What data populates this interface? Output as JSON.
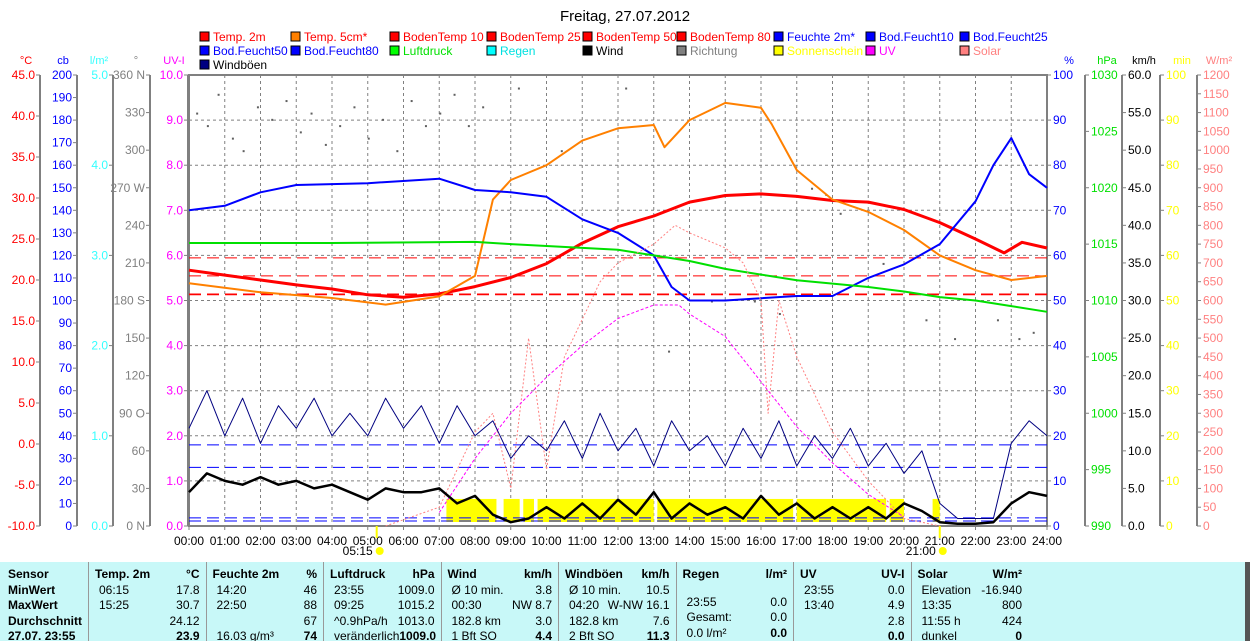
{
  "title": "Freitag, 27.07.2012",
  "legend": [
    {
      "label": "Temp. 2m",
      "color": "#ff0000",
      "text": "#ff0000"
    },
    {
      "label": "Temp. 5cm*",
      "color": "#ff8000",
      "text": "#ff0000"
    },
    {
      "label": "BodenTemp 10",
      "color": "#ff0000",
      "text": "#ff0000"
    },
    {
      "label": "BodenTemp 25",
      "color": "#ff0000",
      "text": "#ff0000"
    },
    {
      "label": "BodenTemp 50",
      "color": "#ff0000",
      "text": "#ff0000"
    },
    {
      "label": "BodenTemp 80",
      "color": "#ff0000",
      "text": "#ff0000"
    },
    {
      "label": "Feuchte 2m*",
      "color": "#0000ff",
      "text": "#0000ff"
    },
    {
      "label": "Bod.Feucht10",
      "color": "#0000ff",
      "text": "#0000ff"
    },
    {
      "label": "Bod.Feucht25",
      "color": "#0000ff",
      "text": "#0000ff"
    },
    {
      "label": "Bod.Feucht50",
      "color": "#0000ff",
      "text": "#0000ff"
    },
    {
      "label": "Bod.Feucht80",
      "color": "#0000ff",
      "text": "#0000ff"
    },
    {
      "label": "Luftdruck",
      "color": "#00ff00",
      "text": "#00e000"
    },
    {
      "label": "Regen",
      "color": "#00ffff",
      "text": "#00e0e0"
    },
    {
      "label": "Wind",
      "color": "#000000",
      "text": "#000000"
    },
    {
      "label": "Richtung",
      "color": "#808080",
      "text": "#808080"
    },
    {
      "label": "Sonnenschein",
      "color": "#ffff00",
      "text": "#ffff00"
    },
    {
      "label": "UV",
      "color": "#ff00ff",
      "text": "#ff00ff"
    },
    {
      "label": "Solar",
      "color": "#ff8080",
      "text": "#ff8080"
    },
    {
      "label": "Windböen",
      "color": "#000080",
      "text": "#000000"
    }
  ],
  "chart_data": {
    "type": "line",
    "title": "Freitag, 27.07.2012",
    "x_labels": [
      "00:00",
      "01:00",
      "02:00",
      "03:00",
      "04:00",
      "05:00",
      "06:00",
      "07:00",
      "08:00",
      "09:00",
      "10:00",
      "11:00",
      "12:00",
      "13:00",
      "14:00",
      "15:00",
      "16:00",
      "17:00",
      "18:00",
      "19:00",
      "20:00",
      "21:00",
      "22:00",
      "23:00",
      "24:00"
    ],
    "xlim": [
      0,
      24
    ],
    "sunrise": {
      "label": "05:15",
      "hour": 5.25
    },
    "sunset": {
      "label": "21:00",
      "hour": 21.0
    },
    "grid": true,
    "axes": {
      "temp": {
        "unit": "°C",
        "color": "#ff0000",
        "min": -10,
        "max": 45,
        "step": 5,
        "dec": 1,
        "side": "left"
      },
      "cb": {
        "unit": "cb",
        "color": "#0000ff",
        "min": 0,
        "max": 200,
        "step": 10,
        "dec": 0,
        "side": "left"
      },
      "rain": {
        "unit": "l/m²",
        "color": "#33ffff",
        "min": 0,
        "max": 5,
        "step": 1,
        "dec": 1,
        "side": "left"
      },
      "dir": {
        "unit": "°",
        "color": "#808080",
        "min": 0,
        "max": 360,
        "step": 30,
        "side": "left",
        "labels": [
          "0 N",
          "30",
          "60",
          "90 O",
          "120",
          "150",
          "180 S",
          "210",
          "240",
          "270 W",
          "300",
          "330",
          "360 N"
        ]
      },
      "uv": {
        "unit": "UV-I",
        "color": "#ff00ff",
        "min": 0,
        "max": 10,
        "step": 1,
        "dec": 1,
        "side": "left"
      },
      "hum": {
        "unit": "%",
        "color": "#0000ff",
        "min": 0,
        "max": 100,
        "step": 10,
        "dec": 0,
        "side": "right"
      },
      "press": {
        "unit": "hPa",
        "color": "#00e000",
        "min": 990,
        "max": 1030,
        "step": 5,
        "dec": 0,
        "side": "right"
      },
      "wind": {
        "unit": "km/h",
        "color": "#000000",
        "min": 0,
        "max": 60,
        "step": 5,
        "dec": 1,
        "side": "right"
      },
      "sun": {
        "unit": "min",
        "color": "#ffff00",
        "min": 0,
        "max": 100,
        "step": 10,
        "dec": 0,
        "side": "right"
      },
      "solar": {
        "unit": "W/m²",
        "color": "#ff8080",
        "min": 0,
        "max": 1200,
        "step": 50,
        "dec": 0,
        "side": "right"
      }
    },
    "series": [
      {
        "name": "Temp. 2m",
        "axis": "temp",
        "color": "#ff0000",
        "width": 3,
        "x": [
          0,
          1,
          2,
          3,
          4,
          5,
          6,
          7,
          8,
          9,
          10,
          11,
          12,
          13,
          14,
          15,
          16,
          17,
          18,
          19,
          20,
          21,
          22,
          22.8,
          23.3,
          24
        ],
        "y": [
          21.2,
          20.6,
          20.0,
          19.4,
          18.9,
          18.2,
          17.9,
          18.3,
          19.2,
          20.3,
          22.0,
          24.5,
          26.5,
          27.8,
          29.5,
          30.3,
          30.5,
          30.2,
          29.7,
          29.5,
          28.6,
          27.0,
          25.0,
          23.3,
          24.6,
          23.9
        ]
      },
      {
        "name": "Temp. 5cm*",
        "axis": "temp",
        "color": "#ff8000",
        "width": 2,
        "x": [
          0,
          2,
          4,
          5.5,
          7,
          8,
          8.5,
          9,
          10,
          11,
          12,
          13,
          13.3,
          14,
          15,
          16,
          16.3,
          17,
          18,
          19,
          20,
          21,
          22,
          23,
          24
        ],
        "y": [
          19.6,
          18.5,
          17.8,
          17.0,
          18.0,
          20.5,
          29.8,
          32.2,
          34.0,
          37.0,
          38.5,
          38.9,
          36.2,
          39.5,
          41.6,
          41.0,
          39.0,
          33.4,
          29.8,
          28.3,
          26.1,
          23.0,
          21.2,
          20.0,
          20.5
        ]
      },
      {
        "name": "Feuchte 2m*",
        "axis": "hum",
        "color": "#0000ff",
        "width": 2,
        "x": [
          0,
          1,
          2,
          3,
          5,
          7,
          8,
          9,
          10,
          11,
          12,
          13,
          13.5,
          14,
          15,
          16,
          17,
          18,
          19,
          20,
          21,
          22,
          22.5,
          23,
          23.5,
          24
        ],
        "y": [
          70,
          71,
          74,
          75.6,
          76,
          77,
          74.5,
          74,
          73,
          68,
          65,
          60,
          53,
          50,
          50,
          50.5,
          51,
          51,
          55,
          58,
          62.5,
          72,
          80,
          86,
          78,
          75
        ]
      },
      {
        "name": "Luftdruck",
        "axis": "press",
        "color": "#00e000",
        "width": 2,
        "x": [
          0,
          4,
          8,
          9,
          12,
          13,
          14,
          15,
          16,
          17,
          19,
          20,
          21,
          22,
          23,
          24
        ],
        "y": [
          1015.1,
          1015.1,
          1015.2,
          1015.0,
          1014.5,
          1014.0,
          1013.5,
          1012.8,
          1012.3,
          1011.8,
          1011.2,
          1010.8,
          1010.3,
          1010.0,
          1009.5,
          1009.0
        ]
      },
      {
        "name": "Solar",
        "axis": "solar",
        "color": "#ff8080",
        "width": 1,
        "dash": "2,2",
        "x": [
          5.5,
          7,
          8,
          8.5,
          9,
          9.5,
          10,
          10.5,
          11,
          11.5,
          12,
          13,
          13.6,
          14,
          15,
          15.5,
          16,
          16.2,
          16.5,
          17,
          18,
          19,
          20,
          21
        ],
        "y": [
          0,
          50,
          250,
          300,
          100,
          500,
          150,
          450,
          550,
          650,
          700,
          750,
          800,
          780,
          740,
          700,
          600,
          300,
          600,
          450,
          250,
          120,
          20,
          0
        ]
      },
      {
        "name": "UV",
        "axis": "uv",
        "color": "#ff00ff",
        "width": 1,
        "dash": "3,2",
        "x": [
          7,
          8,
          9,
          10,
          11,
          12,
          13,
          13.7,
          14,
          15,
          16,
          17,
          18,
          19,
          20
        ],
        "y": [
          0.3,
          1.5,
          2.5,
          3.3,
          4.0,
          4.6,
          4.9,
          4.9,
          4.7,
          4.2,
          3.2,
          2.2,
          1.4,
          0.7,
          0.2
        ]
      },
      {
        "name": "Windböen",
        "axis": "wind",
        "color": "#000080",
        "width": 1,
        "step": 0.5,
        "y": [
          13,
          18,
          12,
          17,
          11,
          16,
          13,
          17,
          12,
          15,
          12,
          17,
          13,
          16,
          11,
          16,
          12,
          14,
          9,
          12,
          10,
          14,
          9,
          15,
          10,
          13,
          8,
          14,
          10,
          12,
          8,
          13,
          9,
          14,
          8,
          12,
          9,
          13,
          8,
          11,
          7,
          10,
          3,
          1,
          1,
          1,
          11,
          14,
          12
        ]
      },
      {
        "name": "Wind",
        "axis": "wind",
        "color": "#000000",
        "width": 2.5,
        "step": 0.5,
        "y": [
          4.5,
          7,
          6,
          5.5,
          6.5,
          5.5,
          6,
          5,
          5.5,
          4.5,
          3.5,
          5,
          4.5,
          4.5,
          5,
          3,
          4,
          1.5,
          0.5,
          1,
          2.5,
          1,
          3,
          1,
          3.5,
          1.5,
          4.5,
          1,
          3,
          1.5,
          2.5,
          1,
          4,
          1.5,
          3,
          1,
          2.5,
          1,
          2.5,
          1,
          3,
          2,
          0.5,
          0.3,
          0.3,
          0.5,
          3,
          4.5,
          4
        ]
      }
    ],
    "levels": [
      {
        "name": "BodenTemp 10",
        "axis": "temp",
        "color": "#ff0000",
        "value": 22.7
      },
      {
        "name": "BodenTemp 25",
        "axis": "temp",
        "color": "#ff0000",
        "value": 20.5
      },
      {
        "name": "BodenTemp 50",
        "axis": "temp",
        "color": "#ff0000",
        "value": 18.3
      },
      {
        "name": "BodenTemp 80",
        "axis": "temp",
        "color": "#ff0000",
        "value": 18.2
      },
      {
        "name": "Bod.Feucht10",
        "axis": "hum",
        "color": "#0000ff",
        "value": 18
      },
      {
        "name": "Bod.Feucht25",
        "axis": "hum",
        "color": "#0000ff",
        "value": 13
      },
      {
        "name": "Bod.Feucht50",
        "axis": "hum",
        "color": "#0000ff",
        "value": 1.8
      },
      {
        "name": "Bod.Feucht80",
        "axis": "hum",
        "color": "#0000ff",
        "value": 1.1
      }
    ],
    "sunshine": {
      "axis": "sun",
      "value": 6,
      "intervals": [
        [
          7.2,
          8.6
        ],
        [
          8.8,
          9.25
        ],
        [
          9.35,
          9.65
        ],
        [
          9.75,
          13.0
        ],
        [
          13.1,
          16.9
        ],
        [
          17.0,
          19.5
        ],
        [
          19.6,
          20.0
        ],
        [
          20.8,
          21.0
        ]
      ]
    },
    "richtung": {
      "axis": "dir",
      "x": [
        0.2,
        0.5,
        0.8,
        1.2,
        1.5,
        1.9,
        2.3,
        2.7,
        3.1,
        3.4,
        3.8,
        4.2,
        4.6,
        5.0,
        5.4,
        5.8,
        6.2,
        6.6,
        7.0,
        7.4,
        7.8,
        8.2,
        9.2,
        10.4,
        12.2,
        13.4,
        14.6,
        15.8,
        16.5,
        17.4,
        17.8,
        18.2,
        19.4,
        20.6,
        21.4,
        22.6,
        23.2,
        23.6
      ],
      "y": [
        330,
        320,
        345,
        310,
        300,
        335,
        325,
        340,
        315,
        330,
        305,
        320,
        335,
        310,
        325,
        300,
        340,
        320,
        330,
        345,
        320,
        335,
        350,
        300,
        350,
        140,
        180,
        180,
        170,
        270,
        265,
        250,
        210,
        165,
        150,
        165,
        150,
        155
      ]
    }
  },
  "table": {
    "sensor": [
      "Sensor",
      "MinWert",
      "MaxWert",
      "Durchschnitt",
      "27.07. 23:55"
    ],
    "groups": [
      {
        "name": "Temp. 2m",
        "unit": "°C",
        "rows": [
          [
            "06:15",
            "17.8"
          ],
          [
            "15:25",
            "30.7"
          ],
          [
            "",
            "24.12"
          ],
          [
            "",
            "23.9"
          ]
        ]
      },
      {
        "name": "Feuchte 2m",
        "unit": "%",
        "rows": [
          [
            "14:20",
            "46"
          ],
          [
            "22:50",
            "88"
          ],
          [
            "",
            "67"
          ],
          [
            "16.03 g/m³",
            "74"
          ]
        ]
      },
      {
        "name": "Luftdruck",
        "unit": "hPa",
        "rows": [
          [
            "23:55",
            "1009.0"
          ],
          [
            "09:25",
            "1015.2"
          ],
          [
            "^0.9hPa/h",
            "1013.0"
          ],
          [
            "veränderlich",
            "1009.0"
          ]
        ]
      },
      {
        "name": "Wind",
        "unit": "km/h",
        "rows": [
          [
            "Ø 10 min.",
            "3.8"
          ],
          [
            "00:30",
            "NW 8.7"
          ],
          [
            "182.8 km",
            "3.0"
          ],
          [
            "1 Bft SO",
            "4.4"
          ]
        ]
      },
      {
        "name": "Windböen",
        "unit": "km/h",
        "rows": [
          [
            "Ø 10 min.",
            "10.5"
          ],
          [
            "04:20",
            "W-NW 16.1"
          ],
          [
            "182.8 km",
            "7.6"
          ],
          [
            "2 Bft SO",
            "11.3"
          ]
        ]
      },
      {
        "name": "Regen",
        "unit": "l/m²",
        "rows": [
          [
            "",
            ""
          ],
          [
            "23:55",
            "0.0"
          ],
          [
            "Gesamt:",
            "0.0"
          ],
          [
            "0.0 l/m²",
            "0.0"
          ]
        ]
      },
      {
        "name": "UV",
        "unit": "UV-I",
        "rows": [
          [
            "23:55",
            "0.0"
          ],
          [
            "13:40",
            "4.9"
          ],
          [
            "",
            "2.8"
          ],
          [
            "",
            "0.0"
          ]
        ]
      },
      {
        "name": "Solar",
        "unit": "W/m²",
        "rows": [
          [
            "Elevation",
            "-16.940"
          ],
          [
            "13:35",
            "800"
          ],
          [
            "11:55 h",
            "424"
          ],
          [
            "dunkel",
            "0"
          ]
        ]
      }
    ]
  }
}
